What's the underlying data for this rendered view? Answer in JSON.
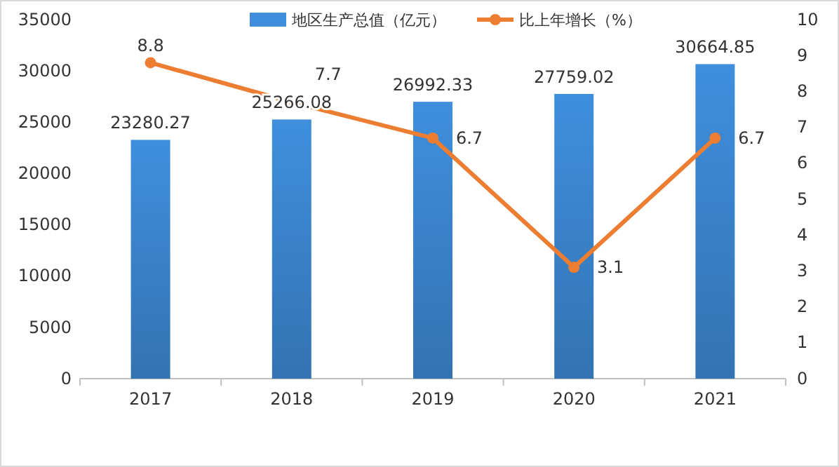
{
  "chart_data": {
    "type": "bar",
    "categories": [
      "2017",
      "2018",
      "2019",
      "2020",
      "2021"
    ],
    "series": [
      {
        "name": "地区生产总值（亿元）",
        "type": "bar",
        "color": "#3f8fdd",
        "values": [
          23280.27,
          25266.08,
          26992.33,
          27759.02,
          30664.85
        ]
      },
      {
        "name": "比上年增长（%）",
        "type": "line",
        "axis": "y2",
        "color": "#ed7d31",
        "values": [
          8.8,
          7.7,
          6.7,
          3.1,
          6.7
        ]
      }
    ],
    "ylim": [
      0,
      35000
    ],
    "yticks": [
      0,
      5000,
      10000,
      15000,
      20000,
      25000,
      30000,
      35000
    ],
    "y2lim": [
      0,
      10
    ],
    "y2ticks": [
      0,
      1,
      2,
      3,
      4,
      5,
      6,
      7,
      8,
      9,
      10
    ],
    "data_labels": true,
    "legend": "top",
    "marker": "circle",
    "grid": false
  }
}
